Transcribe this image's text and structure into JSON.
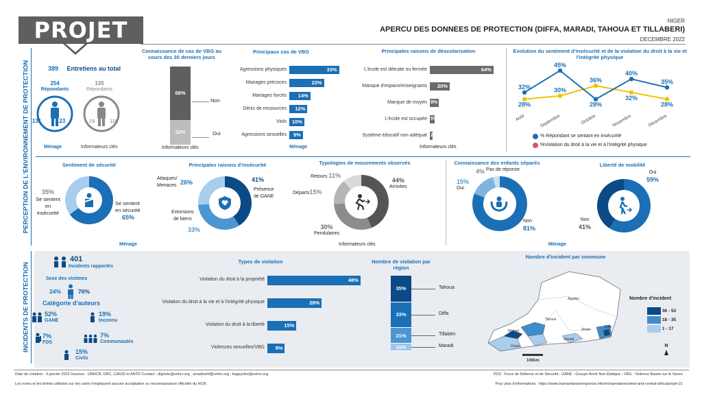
{
  "header": {
    "logo": "PROJET 21",
    "country": "NIGER",
    "title": "APERCU DES DONNEES DE PROTECTION (DIFFA, MARADI, TAHOUA ET TILLABERI)",
    "date": "DECEMBRE 2022"
  },
  "side_labels": {
    "top": "PERCEPTION DE L'ENVIRONNEMENT DE PROTECTION",
    "bottom": "INCIDENTS DE PROTECTION"
  },
  "entretiens": {
    "total": "389",
    "total_label": "Entretiens au total",
    "menage_count": "254",
    "menage_label": "Répondants",
    "ki_count": "135",
    "ki_label": "Répondants",
    "menage_m": "131",
    "menage_f": "123",
    "ki_m": "19",
    "ki_f": "116",
    "menage_caption": "Ménage",
    "ki_caption": "Informateurs clés"
  },
  "vbg_knowledge": {
    "title": "Connaissance de cas de VBG au cours des 30 derniers jours",
    "non_pct": "68%",
    "non_label": "Non",
    "oui_pct": "32%",
    "oui_label": "Oui",
    "caption": "Informateurs clés"
  },
  "vbg_cases": {
    "title": "Principaux cas de VBG",
    "caption": "Ménage",
    "items": [
      {
        "label": "Agressions physiques",
        "value": 33,
        "text": "33%"
      },
      {
        "label": "Mariages précoces",
        "value": 23,
        "text": "23%"
      },
      {
        "label": "Mariages forcés",
        "value": 14,
        "text": "14%"
      },
      {
        "label": "Dénis de ressources",
        "value": 12,
        "text": "12%"
      },
      {
        "label": "Viols",
        "value": 10,
        "text": "10%"
      },
      {
        "label": "Agressions sexuelles",
        "value": 9,
        "text": "9%"
      }
    ]
  },
  "descolarisation": {
    "title": "Principales raisons de déscolarisation",
    "caption": "Informateurs clés",
    "items": [
      {
        "label": "L'école est détruite ou fermée",
        "value": 64,
        "text": "64%"
      },
      {
        "label": "Manque d'espace/enseignants",
        "value": 20,
        "text": "20%"
      },
      {
        "label": "Manque de moyen",
        "value": 9,
        "text": "9%"
      },
      {
        "label": "L'école est occupée",
        "value": 5,
        "text": "5%"
      },
      {
        "label": "Système éducatif non adéquat",
        "value": 2,
        "text": "2%"
      }
    ]
  },
  "evolution": {
    "title": "Evolution du sentiment d'insécurité et de la violation du droit à la vie et l'intégrité physique",
    "months": [
      "Août",
      "Septembre",
      "Octobre",
      "Novembre",
      "Décembre"
    ],
    "series_insecurite": {
      "name": "% Répondant se sentant en insécurité",
      "values": [
        32,
        45,
        28,
        40,
        35
      ],
      "color": "#1a6fb5"
    },
    "series_violation": {
      "name": "%Violation du droit à la vie et à l'intégrité physique",
      "values": [
        28,
        30,
        36,
        32,
        28
      ],
      "color": "#f2c200"
    },
    "labels_insecurite": [
      "32%",
      "45%",
      "28%",
      "40%",
      "35%"
    ],
    "labels_violation": [
      "28%",
      "30%",
      "36%",
      "32%",
      "28%"
    ]
  },
  "securite": {
    "title": "Sentiment de sécurité",
    "insecure_pct": "35%",
    "insecure_label_1": "Se sentent",
    "insecure_label_2": "en",
    "insecure_label_3": "insécurité",
    "insecure_value": 35,
    "secure_label_1": "Se sentent",
    "secure_label_2": "en sécurité",
    "secure_pct": "65%",
    "caption": "Ménage"
  },
  "insecurite_raisons": {
    "title": "Principales raisons d'insécurité",
    "a_pct": "26%",
    "a_label_1": "Attaques/",
    "a_label_2": "Menaces",
    "a_value": 26,
    "g_pct": "41%",
    "g_label_1": "Présence",
    "g_label_2": "de GANE",
    "g_value": 41,
    "e_pct": "33%",
    "e_label_1": "Extorsions",
    "e_label_2": "de biens",
    "e_value": 33
  },
  "mouvements": {
    "title": "Typologies de mouvements observés",
    "retours_pct": "11%",
    "retours_label": "Retours",
    "retours_value": 11,
    "arrivees_pct": "44%",
    "arrivees_label": "Arrivées",
    "arrivees_value": 44,
    "departs_pct": "15%",
    "departs_label": "Départs",
    "departs_value": 15,
    "pendulaires_pct": "30%",
    "pendulaires_label": "Pendulaires",
    "pendulaires_value": 30,
    "caption": "Informateurs clés"
  },
  "enfants": {
    "title": "Connaissance des enfants séparés",
    "npr_pct": "4%",
    "npr_label": "Pas de réponse",
    "npr_value": 4,
    "oui_pct": "15%",
    "oui_label": "Oui",
    "oui_value": 15,
    "non_label": "Non",
    "non_pct": "81%",
    "non_value": 81
  },
  "mobilite": {
    "title": "Liberté de mobilité",
    "oui_label": "Oui",
    "oui_pct": "59%",
    "oui_value": 59,
    "non_label": "Non",
    "non_pct": "41%",
    "non_value": 41,
    "caption": "Ménage"
  },
  "incidents": {
    "count": "401",
    "count_label": "Incidents rapportés",
    "sexe_title": "Sexe des victimes",
    "sexe_f": "24%",
    "sexe_m": "76%",
    "auteurs_title": "Catégorie d'auteurs",
    "gane_pct": "52%",
    "gane_label": "GANE",
    "inconnu_pct": "19%",
    "inconnu_label": "Inconnu",
    "fds_pct": "7%",
    "fds_label": "FDS",
    "comm_pct": "7%",
    "comm_label": "Communautés",
    "civils_pct": "15%",
    "civils_label": "Civils"
  },
  "violations": {
    "title": "Types de violation",
    "items": [
      {
        "label": "Violation du droit à la propriété",
        "value": 48,
        "text": "48%"
      },
      {
        "label": "Violation du droit à la vie et à l'intégrité physique",
        "value": 28,
        "text": "28%"
      },
      {
        "label": "Violation du droit à la liberté",
        "value": 15,
        "text": "15%"
      },
      {
        "label": "Violences sexuelles/VBG",
        "value": 9,
        "text": "9%"
      }
    ]
  },
  "region": {
    "title": "Nombre de violation par région",
    "items": [
      {
        "label": "Tahoua",
        "value": 35,
        "text": "35%",
        "color": "#0b4a86"
      },
      {
        "label": "Diffa",
        "value": 33,
        "text": "33%",
        "color": "#1a6fb5"
      },
      {
        "label": "Tillabéri",
        "value": 21,
        "text": "21%",
        "color": "#4c97d2"
      },
      {
        "label": "Maradi",
        "value": 10,
        "text": "10%",
        "color": "#9cc6ea"
      }
    ]
  },
  "map": {
    "title": "Nombre d'incident par commune",
    "legend_title": "Nombre d'incident",
    "legend": [
      {
        "label": "36 - 53",
        "color": "#0b4a86"
      },
      {
        "label": "18 - 35",
        "color": "#3f8ccd"
      },
      {
        "label": "1 - 17",
        "color": "#a9cdec"
      }
    ],
    "scale": "100km",
    "north": "N",
    "place_labels": [
      "Agadez",
      "Tahoua",
      "Tillabéri",
      "Maradi",
      "Zinder",
      "Diffa",
      "Dosso"
    ]
  },
  "footer": {
    "line1_left": "Date de création : 4 janvier 2023     Sources : UNHCR, DRC, CIAUD et ANTD     Contact : dignete@unhcr.org ; amadouhf@unhcr.org ; bageyoko@unhcr.org",
    "line1_right": "FDS : Force de Défense et de Sécurité ; GANE : Groupe Armé Non Etatique ; VBG : Violence Basée sur le Genre",
    "line2_left": "Les noms et les limites utilisées sur les carte n'impliquent aucune acceptation ou reconnaissance officielle du HCR.",
    "line2_right": "Pour plus d'informations : https://www.humanitarianresponse.info/en/operations/west-and-central-africa/projet-21"
  }
}
